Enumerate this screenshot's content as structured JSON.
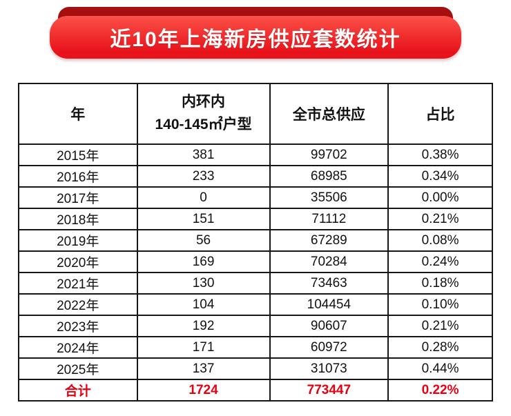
{
  "banner": {
    "title": "近10年上海新房供应套数统计"
  },
  "colors": {
    "ribbon_back": "#a50f0f",
    "ribbon_front_top": "#fb5148",
    "ribbon_front_bottom": "#e8121a",
    "total_red": "#e60012",
    "border_black": "#151515"
  },
  "chart_data": {
    "type": "table",
    "title": "近10年上海新房供应套数统计",
    "columns": {
      "year": "年",
      "inner_line1": "内环内",
      "inner_line2": "140-145㎡户型",
      "city_total": "全市总供应",
      "share": "占比"
    },
    "rows": [
      [
        "2015年",
        "381",
        "99702",
        "0.38%"
      ],
      [
        "2016年",
        "233",
        "68985",
        "0.34%"
      ],
      [
        "2017年",
        "0",
        "35506",
        "0.00%"
      ],
      [
        "2018年",
        "151",
        "71112",
        "0.21%"
      ],
      [
        "2019年",
        "56",
        "67289",
        "0.08%"
      ],
      [
        "2020年",
        "169",
        "70284",
        "0.24%"
      ],
      [
        "2021年",
        "130",
        "73463",
        "0.18%"
      ],
      [
        "2022年",
        "104",
        "104454",
        "0.10%"
      ],
      [
        "2023年",
        "192",
        "90607",
        "0.21%"
      ],
      [
        "2024年",
        "171",
        "60972",
        "0.28%"
      ],
      [
        "2025年",
        "137",
        "31073",
        "0.44%"
      ]
    ],
    "total": [
      "合计",
      "1724",
      "773447",
      "0.22%"
    ]
  }
}
